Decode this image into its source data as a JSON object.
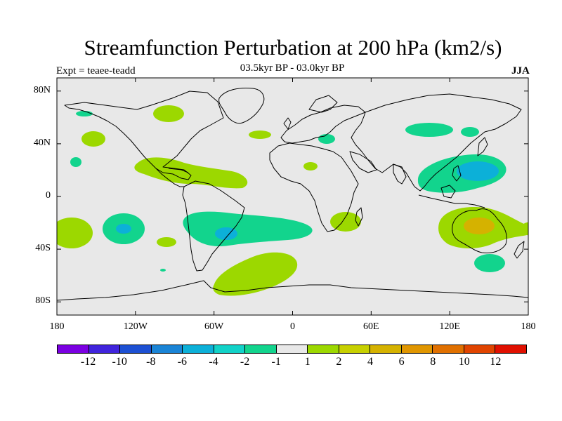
{
  "header": {
    "title": "Streamfunction Perturbation at 200 hPa (km2/s)",
    "experiment": "Expt = teaee-teadd",
    "period": "03.5kyr BP - 03.0kyr BP",
    "season": "JJA"
  },
  "axes": {
    "y_ticks": [
      {
        "label": "80N",
        "lat": 80
      },
      {
        "label": "40N",
        "lat": 40
      },
      {
        "label": "0",
        "lat": 0
      },
      {
        "label": "40S",
        "lat": -40
      },
      {
        "label": "80S",
        "lat": -80
      }
    ],
    "x_ticks": [
      {
        "label": "180",
        "lon": -180
      },
      {
        "label": "120W",
        "lon": -120
      },
      {
        "label": "60W",
        "lon": -60
      },
      {
        "label": "0",
        "lon": 0
      },
      {
        "label": "60E",
        "lon": 60
      },
      {
        "label": "120E",
        "lon": 120
      },
      {
        "label": "180",
        "lon": 180
      }
    ],
    "lon_range": [
      -180,
      180
    ],
    "lat_range": [
      -90,
      90
    ]
  },
  "colorbar": {
    "colors": [
      "#7b00e2",
      "#4024dc",
      "#1d50d3",
      "#1a84d6",
      "#0cb0d8",
      "#12d2c8",
      "#12d48d",
      "#e8e8e8",
      "#9cd800",
      "#c7d000",
      "#d5b200",
      "#e09600",
      "#e07000",
      "#e04400",
      "#e01000"
    ],
    "labels": [
      "-12",
      "-10",
      "-8",
      "-6",
      "-4",
      "-2",
      "-1",
      "1",
      "2",
      "4",
      "6",
      "8",
      "10",
      "12"
    ]
  },
  "chart_data": {
    "type": "map",
    "title": "Streamfunction Perturbation at 200 hPa (km2/s)",
    "subtitle": "03.5kyr BP - 03.0kyr BP",
    "units": "km2/s",
    "background_value_range": [
      -1,
      1
    ],
    "anomaly_regions": [
      {
        "name": "NE Pacific subtropical",
        "lon": -165,
        "lat": 42,
        "value": -1.5
      },
      {
        "name": "Central Pacific north",
        "lon": -175,
        "lat": 25,
        "value": -1.5
      },
      {
        "name": "Alaska/Arctic",
        "lon": -180,
        "lat": 62,
        "value": -1.5
      },
      {
        "name": "Hudson Bay",
        "lon": -90,
        "lat": 62,
        "value": 1.5
      },
      {
        "name": "Central America / Atlantic",
        "lon": -65,
        "lat": 20,
        "value": 1.5
      },
      {
        "name": "North Atlantic",
        "lon": -25,
        "lat": 45,
        "value": 1.5
      },
      {
        "name": "Mediterranean",
        "lon": 25,
        "lat": 42,
        "value": -1.5
      },
      {
        "name": "Sahara",
        "lon": 15,
        "lat": 24,
        "value": 1.5
      },
      {
        "name": "Central Asia",
        "lon": 100,
        "lat": 50,
        "value": -1.5
      },
      {
        "name": "NE Asia",
        "lon": 135,
        "lat": 48,
        "value": -1.5
      },
      {
        "name": "West Pacific",
        "lon": 135,
        "lat": 18,
        "value": -2.5
      },
      {
        "name": "South Pacific west",
        "lon": -180,
        "lat": -32,
        "value": 1.5
      },
      {
        "name": "South Pacific central",
        "lon": -130,
        "lat": -25,
        "value": -2.5
      },
      {
        "name": "South America / South Atlantic",
        "lon": -35,
        "lat": -28,
        "value": -2.5
      },
      {
        "name": "Southern Atlantic",
        "lon": -30,
        "lat": -62,
        "value": 1.5
      },
      {
        "name": "Southern Africa",
        "lon": 38,
        "lat": -20,
        "value": 1.5
      },
      {
        "name": "Australia",
        "lon": 140,
        "lat": -25,
        "value": 3
      },
      {
        "name": "Tasman Sea",
        "lon": 145,
        "lat": -48,
        "value": -1.5
      }
    ]
  }
}
